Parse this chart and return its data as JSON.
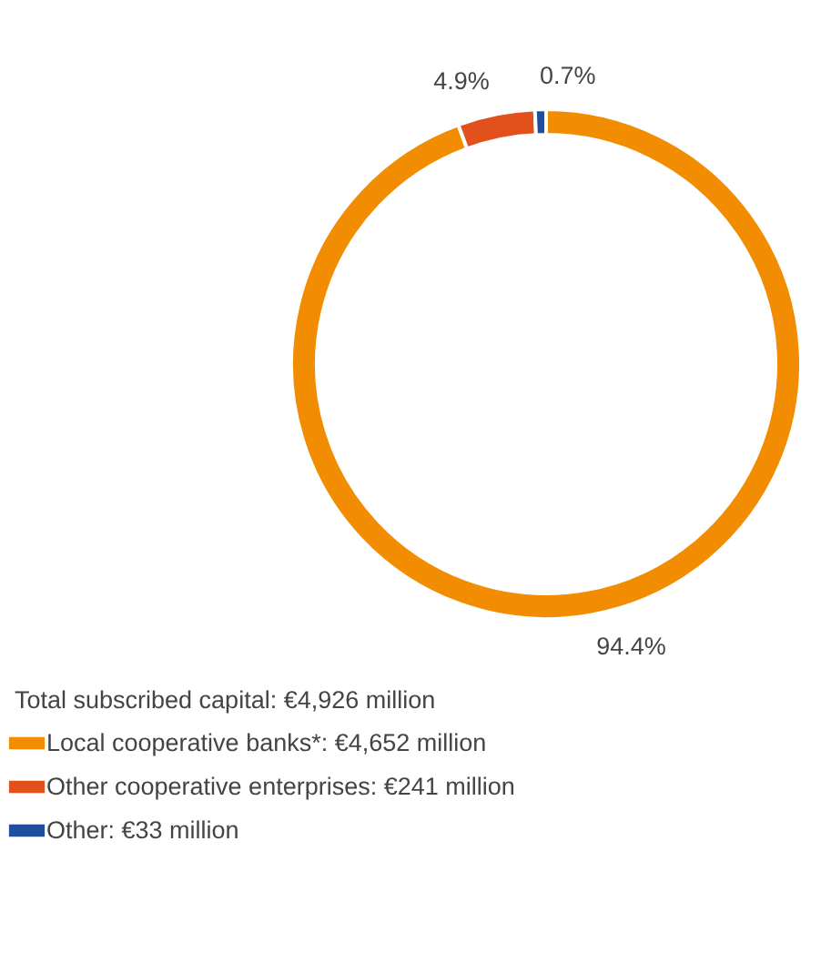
{
  "chart_data": {
    "type": "donut",
    "legend_title": "Total subscribed capital: €4,926 million",
    "categories": [
      "Local cooperative banks*: €4,652 million",
      "Other cooperative enterprises: €241 million",
      "Other: €33 million"
    ],
    "values": [
      94.4,
      4.9,
      0.7
    ],
    "colors": [
      "#f28c00",
      "#e2501c",
      "#1f4e9c"
    ],
    "value_labels": [
      "94.4%",
      "4.9%",
      "0.7%"
    ],
    "legend": "bottom left"
  }
}
